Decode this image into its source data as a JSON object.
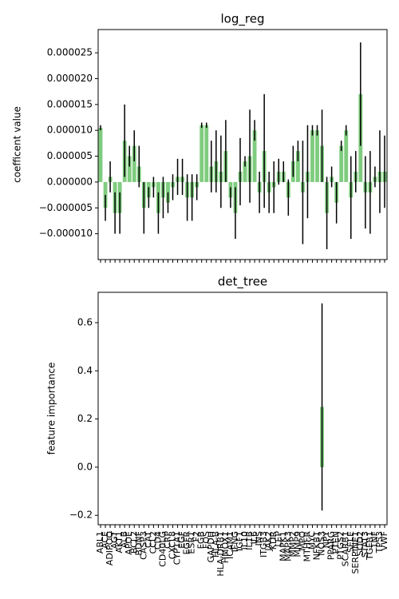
{
  "chart_data": [
    {
      "type": "bar",
      "title": "log_reg",
      "ylabel": "coefficent value",
      "color": "#7fcc7f",
      "error_color": "#000000",
      "values": [
        1.05e-05,
        -5e-06,
        1e-06,
        -6e-06,
        -6e-06,
        8e-06,
        5e-06,
        7e-06,
        3e-06,
        -5e-06,
        -3e-06,
        -1e-06,
        -6e-06,
        -3e-06,
        -4e-06,
        -1e-06,
        1e-06,
        1e-06,
        -3e-06,
        -3e-06,
        -1e-06,
        1.1e-05,
        1.1e-05,
        3e-06,
        4e-06,
        2e-06,
        6e-06,
        -3e-06,
        -6e-06,
        2e-06,
        4e-06,
        5e-06,
        1e-05,
        -2e-06,
        6e-06,
        -2e-06,
        -1e-06,
        2e-06,
        2e-06,
        -3e-06,
        4e-06,
        6e-06,
        -2e-06,
        2e-06,
        1e-05,
        1e-05,
        7e-06,
        -6e-06,
        1e-06,
        -4e-06,
        7e-06,
        1e-05,
        -3e-06,
        2e-06,
        1.7e-05,
        -2e-06,
        -2e-06,
        1e-06,
        2e-06,
        2e-06
      ],
      "errors": [
        5e-07,
        2.5e-06,
        3e-06,
        4e-06,
        4e-06,
        7e-06,
        2e-06,
        3e-06,
        4e-06,
        5e-06,
        2e-06,
        2e-06,
        4e-06,
        4e-06,
        2e-06,
        2.5e-06,
        3.5e-06,
        3.5e-06,
        4.5e-06,
        4.5e-06,
        2.5e-06,
        5e-07,
        5e-07,
        5e-06,
        6e-06,
        7e-06,
        6e-06,
        2e-06,
        5e-06,
        6.5e-06,
        1e-06,
        9e-06,
        2e-06,
        4e-06,
        1.1e-05,
        4e-06,
        5e-06,
        2.5e-06,
        2e-06,
        3.5e-06,
        3e-06,
        2e-06,
        1e-05,
        9e-06,
        1e-06,
        1e-06,
        7e-06,
        7e-06,
        2e-06,
        4e-06,
        1e-06,
        1e-06,
        8e-06,
        4e-06,
        1e-05,
        7e-06,
        8e-06,
        2e-06,
        8e-06,
        7e-06
      ],
      "ylim": [
        -1.5e-05,
        2.95e-05
      ],
      "yticks": [
        {
          "value": -1e-05,
          "label": "−0.000010"
        },
        {
          "value": -5e-06,
          "label": "−0.000005"
        },
        {
          "value": 0,
          "label": "0.000000"
        },
        {
          "value": 5e-06,
          "label": "0.000005"
        },
        {
          "value": 1e-05,
          "label": "0.000010"
        },
        {
          "value": 1.5e-05,
          "label": "0.000015"
        },
        {
          "value": 2e-05,
          "label": "0.000020"
        },
        {
          "value": 2.5e-05,
          "label": "0.000025"
        }
      ]
    },
    {
      "type": "bar",
      "title": "det_tree",
      "ylabel": "feature importance",
      "color": "#7fcc7f",
      "error_color": "#000000",
      "categories": [
        "ABL1",
        "ACE",
        "ADIPOQ",
        "AGT",
        "AKT1",
        "ALB",
        "APOE",
        "BCL2",
        "BDNF",
        "CASP3",
        "CAT",
        "CCL2",
        "CD4",
        "CD40LG",
        "CRP",
        "CXCL8",
        "CYP1A1",
        "EGF",
        "EGFR",
        "ESR1",
        "F2",
        "FGB",
        "FOS",
        "GAPDH",
        "HLA-B",
        "HLA-DRB1",
        "HMOX1",
        "ICAM1",
        "IFNG",
        "IGF1",
        "IL10",
        "IL1B",
        "IL6",
        "INS",
        "ITGB3",
        "JAK2",
        "KDR",
        "LEP",
        "MAPK1",
        "MAPK3",
        "MMP2",
        "MMP9",
        "MPO",
        "MTHFR",
        "MYC",
        "NFKB1",
        "NOS3",
        "NPY",
        "PPARG",
        "PTEN",
        "PTGS2",
        "SCARB1",
        "SELE",
        "SERPINE1",
        "SOD2",
        "STAT3",
        "TGFB1",
        "TNF",
        "TP53",
        "VWF"
      ],
      "values": [
        0,
        0,
        0,
        0,
        0,
        0,
        0,
        0,
        0,
        0,
        0,
        0,
        0,
        0,
        0,
        0,
        0,
        0,
        0,
        0,
        0,
        0,
        0,
        0,
        0,
        0,
        0,
        0,
        0,
        0,
        0,
        0,
        0,
        0,
        0,
        0,
        0,
        0,
        0,
        0,
        0,
        0,
        0,
        0,
        0,
        0,
        0.25,
        0,
        0,
        0,
        0,
        0,
        0,
        0,
        0,
        0,
        0,
        0,
        0,
        0
      ],
      "errors": [
        0,
        0,
        0,
        0,
        0,
        0,
        0,
        0,
        0,
        0,
        0,
        0,
        0,
        0,
        0,
        0,
        0,
        0,
        0,
        0,
        0,
        0,
        0,
        0,
        0,
        0,
        0,
        0,
        0,
        0,
        0,
        0,
        0,
        0,
        0,
        0,
        0,
        0,
        0,
        0,
        0,
        0,
        0,
        0,
        0,
        0,
        0.43,
        0,
        0,
        0,
        0,
        0,
        0,
        0,
        0,
        0,
        0,
        0,
        0,
        0
      ],
      "ylim": [
        -0.239,
        0.726
      ],
      "yticks": [
        {
          "value": -0.2,
          "label": "−0.2"
        },
        {
          "value": 0,
          "label": "0.0"
        },
        {
          "value": 0.2,
          "label": "0.2"
        },
        {
          "value": 0.4,
          "label": "0.4"
        },
        {
          "value": 0.6,
          "label": "0.6"
        }
      ]
    }
  ]
}
